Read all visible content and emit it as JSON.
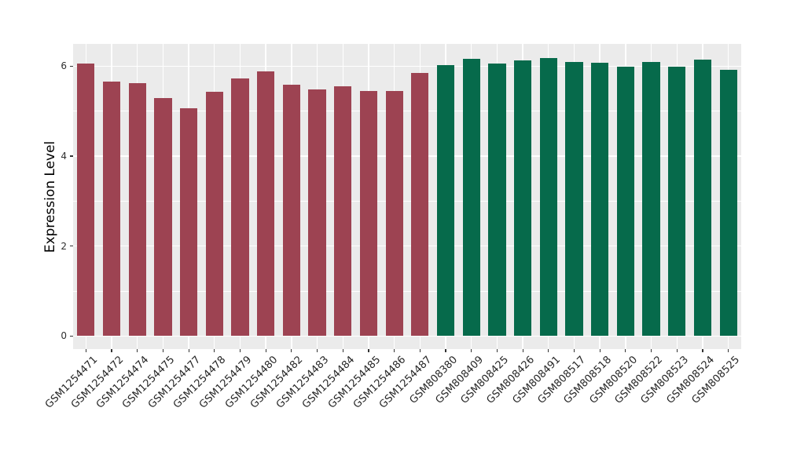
{
  "chart_data": {
    "type": "bar",
    "title": "",
    "xlabel": "",
    "ylabel": "Expression Level",
    "yticks": [
      0,
      2,
      4,
      6
    ],
    "yticks_minor": [
      1,
      3,
      5
    ],
    "ylim": [
      -0.31,
      6.49
    ],
    "grid": true,
    "legend": false,
    "panel_bg": "#EBEBEB",
    "grid_color": "#FFFFFF",
    "tick_color": "#333333",
    "categories": [
      "GSM1254471",
      "GSM1254472",
      "GSM1254474",
      "GSM1254475",
      "GSM1254477",
      "GSM1254478",
      "GSM1254479",
      "GSM1254480",
      "GSM1254482",
      "GSM1254483",
      "GSM1254484",
      "GSM1254485",
      "GSM1254486",
      "GSM1254487",
      "GSM808380",
      "GSM808409",
      "GSM808425",
      "GSM808426",
      "GSM808491",
      "GSM808517",
      "GSM808518",
      "GSM808520",
      "GSM808522",
      "GSM808523",
      "GSM808524",
      "GSM808525"
    ],
    "values": [
      6.05,
      5.65,
      5.63,
      5.29,
      5.06,
      5.43,
      5.72,
      5.88,
      5.58,
      5.49,
      5.56,
      5.44,
      5.44,
      5.84,
      6.02,
      6.17,
      6.06,
      6.13,
      6.18,
      6.1,
      6.07,
      5.98,
      6.1,
      5.98,
      6.15,
      5.92
    ],
    "groups": [
      {
        "name": "group-maroon",
        "color": "#9D4352",
        "start_index": 0,
        "end_index": 13
      },
      {
        "name": "group-green",
        "color": "#066A4B",
        "start_index": 14,
        "end_index": 25
      }
    ]
  }
}
